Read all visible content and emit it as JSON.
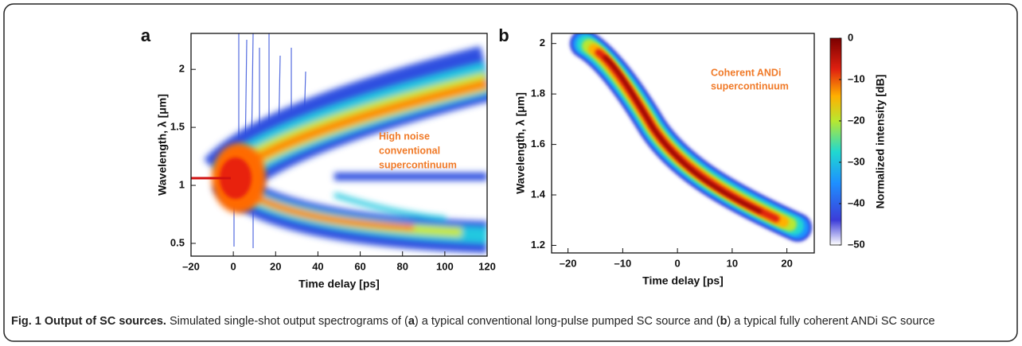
{
  "chart_data": [
    {
      "type": "spectrogram",
      "panel_label": "a",
      "xlabel": "Time delay [ps]",
      "ylabel": "Wavelength, λ [μm]",
      "xlim": [
        -20,
        120
      ],
      "xticks": [
        {
          "value": -20,
          "label": "–20"
        },
        0,
        20,
        40,
        60,
        80,
        100,
        120
      ],
      "ylim": [
        0.39,
        2.31
      ],
      "yticks": [
        0.5,
        1,
        1.5,
        2
      ],
      "annotation": [
        "High noise",
        "conventional",
        "supercontinuum"
      ]
    },
    {
      "type": "spectrogram",
      "panel_label": "b",
      "xlabel": "Time delay [ps]",
      "ylabel": "Wavelength, λ [μm]",
      "xlim": [
        -23,
        25
      ],
      "xticks": [
        {
          "value": -20,
          "label": "–20"
        },
        {
          "value": -10,
          "label": "–10"
        },
        0,
        10,
        20
      ],
      "ylim": [
        1.17,
        2.04
      ],
      "yticks": [
        1.2,
        1.4,
        1.6,
        1.8,
        2
      ],
      "annotation": [
        "Coherent ANDi",
        "supercontinuum"
      ],
      "colorbar": {
        "label": "Normalized intensity [dB]",
        "lim": [
          -50,
          0
        ],
        "ticks": [
          0,
          {
            "value": -10,
            "label": "–10"
          },
          {
            "value": -20,
            "label": "–20"
          },
          {
            "value": -30,
            "label": "–30"
          },
          {
            "value": -40,
            "label": "–40"
          },
          {
            "value": -50,
            "label": "–50"
          }
        ]
      }
    }
  ],
  "caption": {
    "title": "Fig. 1 Output of SC sources.",
    "parts": [
      "Simulated single-shot output spectrograms of (",
      "a",
      ") a typical conventional long-pulse pumped SC source and (",
      "b",
      ") a typical fully coherent ANDi SC source"
    ]
  }
}
